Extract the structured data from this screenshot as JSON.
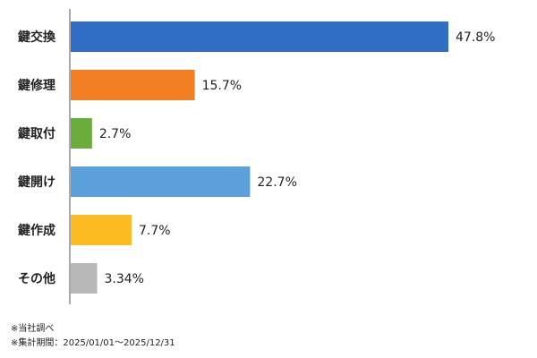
{
  "chart_data": {
    "type": "bar",
    "orientation": "horizontal",
    "categories": [
      "鍵交換",
      "鍵修理",
      "鍵取付",
      "鍵開け",
      "鍵作成",
      "その他"
    ],
    "values": [
      47.8,
      15.7,
      2.7,
      22.7,
      7.7,
      3.34
    ],
    "value_labels": [
      "47.8%",
      "15.7%",
      "2.7%",
      "22.7%",
      "7.7%",
      "3.34%"
    ],
    "colors": [
      "#2f6ec4",
      "#f27f22",
      "#6aad3d",
      "#5b9fdb",
      "#fdbb22",
      "#b8b8b8"
    ],
    "xlim": [
      0,
      50
    ],
    "grid": false,
    "legend": "none"
  },
  "notes": [
    "※当社調べ",
    "※集計期間：2025/01/01～2025/12/31"
  ]
}
